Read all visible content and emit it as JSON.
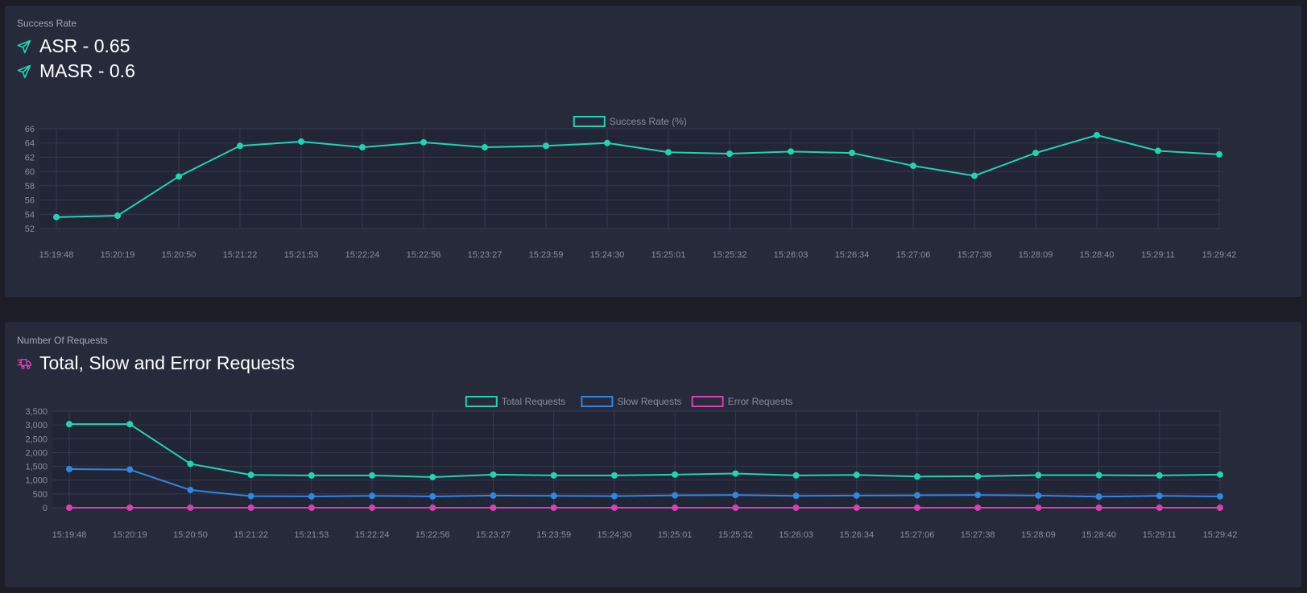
{
  "colors": {
    "background": "#1c1d26",
    "panel": "#262a3b",
    "teal": "#1fd3b3",
    "blue": "#2f86e3",
    "pink": "#d83fb3",
    "grid": "#353a4d"
  },
  "panel1": {
    "label": "Success Rate",
    "asr_text": "ASR - 0.65",
    "masr_text": "MASR - 0.6",
    "icon": "paper-plane-icon"
  },
  "panel2": {
    "label": "Number Of Requests",
    "title": "Total, Slow and Error Requests",
    "icon": "shipping-fast-icon"
  },
  "chart_data": [
    {
      "type": "line",
      "categories": [
        "15:19:48",
        "15:20:19",
        "15:20:50",
        "15:21:22",
        "15:21:53",
        "15:22:24",
        "15:22:56",
        "15:23:27",
        "15:23:59",
        "15:24:30",
        "15:25:01",
        "15:25:32",
        "15:26:03",
        "15:26:34",
        "15:27:06",
        "15:27:38",
        "15:28:09",
        "15:28:40",
        "15:29:11",
        "15:29:42"
      ],
      "yticks": [
        "52",
        "54",
        "56",
        "58",
        "60",
        "62",
        "64",
        "66"
      ],
      "ylim": [
        52,
        66
      ],
      "grid": true,
      "legend_position": "top-center",
      "series": [
        {
          "name": "Success Rate (%)",
          "color": "#1fd3b3",
          "values": [
            53.6,
            53.8,
            59.3,
            63.6,
            64.2,
            63.4,
            64.1,
            63.4,
            63.6,
            64.0,
            62.7,
            62.5,
            62.8,
            62.6,
            60.8,
            59.4,
            62.6,
            65.1,
            62.9,
            62.4
          ]
        }
      ]
    },
    {
      "type": "line",
      "categories": [
        "15:19:48",
        "15:20:19",
        "15:20:50",
        "15:21:22",
        "15:21:53",
        "15:22:24",
        "15:22:56",
        "15:23:27",
        "15:23:59",
        "15:24:30",
        "15:25:01",
        "15:25:32",
        "15:26:03",
        "15:26:34",
        "15:27:06",
        "15:27:38",
        "15:28:09",
        "15:28:40",
        "15:29:11",
        "15:29:42"
      ],
      "yticks": [
        "0",
        "500",
        "1,000",
        "1,500",
        "2,000",
        "2,500",
        "3,000",
        "3,500"
      ],
      "ylim": [
        0,
        3500
      ],
      "grid": true,
      "legend_position": "top-center",
      "series": [
        {
          "name": "Total Requests",
          "color": "#1fd3b3",
          "values": [
            3030,
            3030,
            1590,
            1190,
            1170,
            1170,
            1110,
            1200,
            1170,
            1170,
            1200,
            1240,
            1170,
            1190,
            1130,
            1140,
            1180,
            1180,
            1170,
            1200
          ]
        },
        {
          "name": "Slow Requests",
          "color": "#2f86e3",
          "values": [
            1400,
            1380,
            640,
            420,
            410,
            430,
            410,
            440,
            430,
            420,
            450,
            460,
            430,
            440,
            450,
            460,
            440,
            400,
            430,
            410
          ]
        },
        {
          "name": "Error Requests",
          "color": "#d83fb3",
          "values": [
            0,
            0,
            0,
            0,
            0,
            0,
            0,
            0,
            0,
            0,
            0,
            0,
            0,
            0,
            0,
            0,
            0,
            0,
            0,
            0
          ]
        }
      ]
    }
  ]
}
